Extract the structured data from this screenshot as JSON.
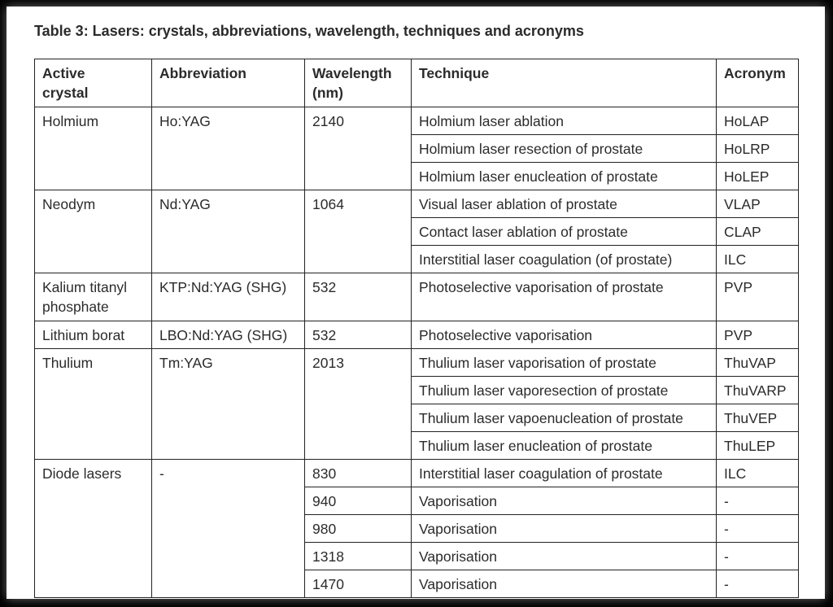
{
  "title": "Table 3: Lasers: crystals, abbreviations, wavelength, techniques and acronyms",
  "headers": {
    "crystal_line1": "Active",
    "crystal_line2": "crystal",
    "abbreviation": "Abbreviation",
    "wavelength_line1": "Wavelength",
    "wavelength_line2": "(nm)",
    "technique": "Technique",
    "acronym": "Acronym"
  },
  "groups": [
    {
      "crystal": "Holmium",
      "abbreviation": "Ho:YAG",
      "rows": [
        {
          "wavelength": "2140",
          "technique": "Holmium laser ablation",
          "acronym": "HoLAP"
        },
        {
          "technique": "Holmium laser resection of prostate",
          "acronym": "HoLRP"
        },
        {
          "technique": "Holmium laser enucleation of prostate",
          "acronym": "HoLEP"
        }
      ]
    },
    {
      "crystal": "Neodym",
      "abbreviation": "Nd:YAG",
      "rows": [
        {
          "wavelength": "1064",
          "technique": "Visual laser ablation of prostate",
          "acronym": "VLAP"
        },
        {
          "technique": "Contact laser ablation of prostate",
          "acronym": "CLAP"
        },
        {
          "technique": "Interstitial laser coagulation (of prostate)",
          "acronym": "ILC"
        }
      ]
    },
    {
      "crystal_line1": "Kalium titanyl",
      "crystal_line2": "phosphate",
      "abbreviation": "KTP:Nd:YAG (SHG)",
      "rows": [
        {
          "wavelength": "532",
          "technique": "Photoselective vaporisation of prostate",
          "acronym": "PVP"
        }
      ]
    },
    {
      "crystal": "Lithium borat",
      "abbreviation": "LBO:Nd:YAG (SHG)",
      "rows": [
        {
          "wavelength": "532",
          "technique": "Photoselective vaporisation",
          "acronym": "PVP"
        }
      ]
    },
    {
      "crystal": "Thulium",
      "abbreviation": "Tm:YAG",
      "rows": [
        {
          "wavelength": "2013",
          "technique": "Thulium laser vaporisation of prostate",
          "acronym": "ThuVAP"
        },
        {
          "technique": "Thulium laser vaporesection of prostate",
          "acronym": "ThuVARP"
        },
        {
          "technique": "Thulium laser vapoenucleation of prostate",
          "acronym": "ThuVEP"
        },
        {
          "technique": "Thulium laser enucleation of prostate",
          "acronym": "ThuLEP"
        }
      ]
    },
    {
      "crystal": "Diode lasers",
      "abbreviation": "-",
      "rows": [
        {
          "wavelength": "830",
          "technique": "Interstitial laser coagulation of prostate",
          "acronym": "ILC"
        },
        {
          "wavelength": "940",
          "technique": "Vaporisation",
          "acronym": "-"
        },
        {
          "wavelength": "980",
          "technique": "Vaporisation",
          "acronym": "-"
        },
        {
          "wavelength": "1318",
          "technique": "Vaporisation",
          "acronym": "-"
        },
        {
          "wavelength": "1470",
          "technique": "Vaporisation",
          "acronym": "-"
        }
      ]
    }
  ]
}
